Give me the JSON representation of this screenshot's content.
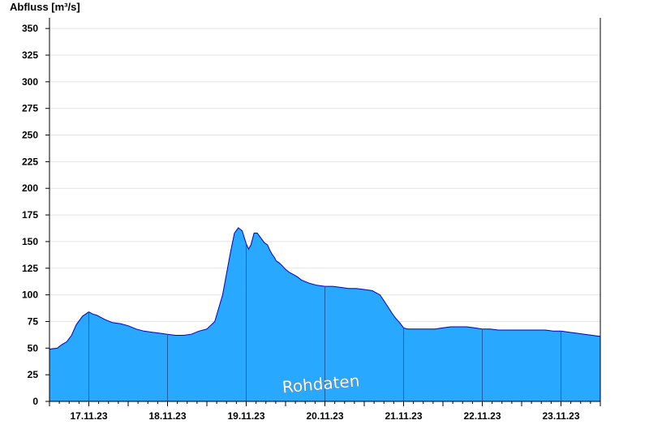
{
  "chart_data": {
    "type": "area",
    "title": "",
    "ylabel": "Abfluss [m³/s]",
    "xlabel": "",
    "ylim": [
      0,
      360
    ],
    "yticks": [
      0,
      25,
      50,
      75,
      100,
      125,
      150,
      175,
      200,
      225,
      250,
      275,
      300,
      325,
      350
    ],
    "grid": true,
    "xlim_days": [
      16.5,
      23.5
    ],
    "day_labels": [
      "17.11.23",
      "18.11.23",
      "19.11.23",
      "20.11.23",
      "21.11.23",
      "22.11.23",
      "23.11.23"
    ],
    "watermark": "Rohdaten",
    "colors": {
      "fill": "#29a8ff",
      "line": "#0000c0",
      "separator": "#1f5fa0",
      "grid": "#e4e4e4"
    },
    "series": [
      {
        "x": [
          16.5,
          16.6,
          16.65,
          16.72,
          16.78,
          16.84,
          16.88,
          16.92,
          16.96,
          17.0,
          17.05,
          17.1,
          17.15,
          17.2,
          17.3,
          17.4,
          17.5,
          17.6,
          17.7,
          17.8,
          17.9,
          18.0,
          18.1,
          18.2,
          18.3,
          18.4,
          18.5,
          18.6,
          18.7,
          18.8,
          18.85,
          18.9,
          18.95,
          19.0,
          19.03,
          19.06,
          19.1,
          19.14,
          19.18,
          19.2,
          19.23,
          19.27,
          19.3,
          19.33,
          19.36,
          19.38,
          19.42,
          19.45,
          19.5,
          19.55,
          19.6,
          19.65,
          19.7,
          19.8,
          19.9,
          20.0,
          20.1,
          20.2,
          20.3,
          20.4,
          20.5,
          20.6,
          20.7,
          20.8,
          20.85,
          20.9,
          20.95,
          21.0,
          21.05,
          21.1,
          21.15,
          21.2,
          21.3,
          21.4,
          21.5,
          21.6,
          21.7,
          21.8,
          21.9,
          22.0,
          22.1,
          22.2,
          22.3,
          22.4,
          22.5,
          22.6,
          22.7,
          22.8,
          22.9,
          23.0,
          23.1,
          23.2,
          23.3,
          23.4,
          23.5
        ],
        "y": [
          49,
          50,
          53,
          56,
          62,
          72,
          76,
          80,
          82,
          84,
          82,
          81,
          79,
          77,
          74,
          73,
          71,
          68,
          66,
          65,
          64,
          63,
          62,
          62,
          63,
          66,
          68,
          75,
          100,
          140,
          158,
          163,
          160,
          148,
          143,
          147,
          158,
          158,
          154,
          152,
          149,
          147,
          142,
          138,
          135,
          132,
          130,
          128,
          124,
          121,
          119,
          117,
          114,
          111,
          109,
          108,
          108,
          107,
          106,
          106,
          105,
          104,
          100,
          89,
          83,
          78,
          74,
          69,
          68,
          68,
          68,
          68,
          68,
          68,
          69,
          70,
          70,
          70,
          69,
          68,
          68,
          67,
          67,
          67,
          67,
          67,
          67,
          67,
          66,
          66,
          65,
          64,
          63,
          62,
          61
        ]
      }
    ]
  }
}
